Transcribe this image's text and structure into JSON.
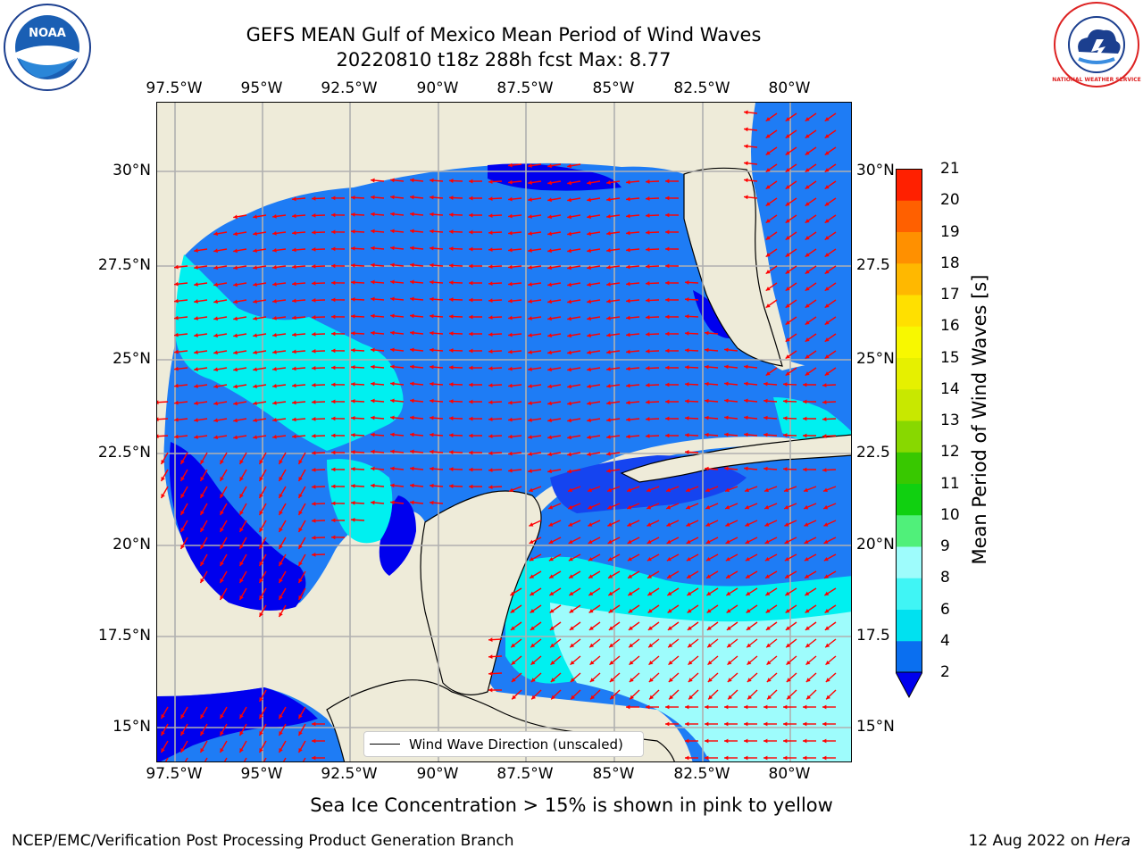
{
  "title": {
    "line1": "GEFS MEAN Gulf of Mexico Mean Period of Wind Waves",
    "line2": "20220810 t18z 288h fcst   Max: 8.77"
  },
  "logos": {
    "noaa": "NOAA",
    "nws": "NATIONAL WEATHER SERVICE"
  },
  "map": {
    "lon_ticks": [
      "97.5°W",
      "95°W",
      "92.5°W",
      "90°W",
      "87.5°W",
      "85°W",
      "82.5°W",
      "80°W"
    ],
    "lat_ticks_left": [
      "30°N",
      "27.5°N",
      "25°N",
      "22.5°N",
      "20°N",
      "17.5°N",
      "15°N"
    ],
    "lat_ticks_right": [
      "30°N",
      "27.5",
      "25°N",
      "22.5",
      "20°N",
      "17.5",
      "15°N"
    ],
    "colors": {
      "land": "#eeebd9",
      "lvl2": "#1e7cf5",
      "lvl0": "#0000ee",
      "lvl4": "#00f0f0",
      "lvl6": "#9efcfc",
      "arrow": "#ff0000",
      "grid": "#b0b0b0"
    }
  },
  "legend": {
    "label": "Wind Wave Direction (unscaled)"
  },
  "colorbar": {
    "label": "Mean Period of Wind Waves [s]",
    "ticks": [
      "2",
      "4",
      "6",
      "8",
      "9",
      "10",
      "11",
      "12",
      "13",
      "14",
      "15",
      "16",
      "17",
      "18",
      "19",
      "20",
      "21"
    ],
    "colors": [
      "#0a6ff0",
      "#00e1f0",
      "#40f5f5",
      "#9efcfc",
      "#50f07a",
      "#10d010",
      "#38c800",
      "#88d800",
      "#c8e800",
      "#e6f000",
      "#f8f800",
      "#ffe000",
      "#ffb800",
      "#ff9000",
      "#ff6000",
      "#ff2000"
    ]
  },
  "footer": {
    "note": "Sea Ice Concentration > 15% is shown in pink to yellow",
    "left": "NCEP/EMC/Verification Post Processing Product Generation Branch",
    "right_prefix": "12 Aug 2022 on ",
    "right_machine": "Hera"
  }
}
